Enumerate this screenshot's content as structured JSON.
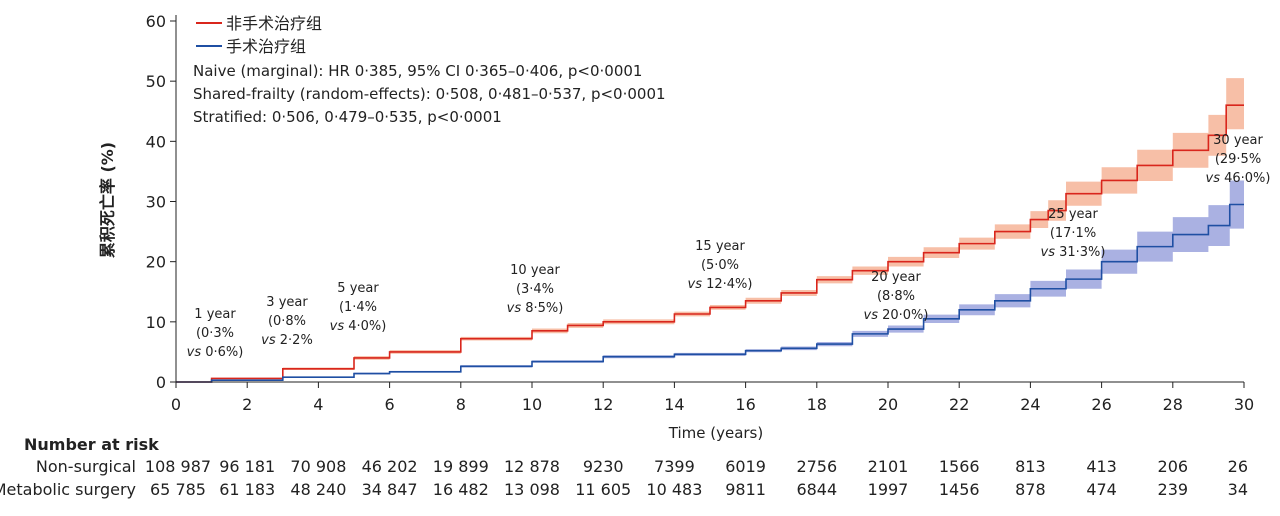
{
  "chart_data": {
    "type": "line",
    "title": "",
    "xlabel": "Time (years)",
    "ylabel": "累积死亡率 (%)",
    "xlim": [
      0,
      30
    ],
    "ylim": [
      0,
      60
    ],
    "x_ticks": [
      "0",
      "2",
      "4",
      "6",
      "8",
      "10",
      "12",
      "14",
      "16",
      "18",
      "20",
      "22",
      "24",
      "26",
      "28",
      "30"
    ],
    "y_ticks": [
      "0",
      "10",
      "20",
      "30",
      "40",
      "50",
      "60"
    ],
    "legend_position": "top-left",
    "series": [
      {
        "name": "非手术治疗组",
        "color": "#d9261c",
        "band_color": "#f4a98a",
        "x": [
          0,
          1,
          3,
          5,
          6,
          8,
          10,
          11,
          12,
          14,
          15,
          16,
          17,
          18,
          19,
          20,
          21,
          22,
          23,
          24,
          24.5,
          25,
          26,
          27,
          28,
          29,
          29.5,
          30
        ],
        "y": [
          0,
          0.6,
          2.2,
          4.0,
          5.0,
          7.2,
          8.5,
          9.4,
          10.0,
          11.3,
          12.4,
          13.5,
          14.8,
          17.0,
          18.5,
          20.0,
          21.5,
          23.0,
          25.0,
          27.0,
          28.5,
          31.3,
          33.5,
          36.0,
          38.5,
          41.0,
          46.0,
          46.0
        ],
        "lower": [
          0,
          0.5,
          2.0,
          3.7,
          4.7,
          6.9,
          8.1,
          9.0,
          9.6,
          10.9,
          12.0,
          13.0,
          14.3,
          16.4,
          17.8,
          19.2,
          20.6,
          22.0,
          23.8,
          25.6,
          26.8,
          29.3,
          31.3,
          33.4,
          35.6,
          37.6,
          42.0,
          42.0
        ],
        "upper": [
          0,
          0.7,
          2.4,
          4.3,
          5.3,
          7.5,
          8.9,
          9.8,
          10.4,
          11.7,
          12.8,
          14.0,
          15.3,
          17.6,
          19.2,
          20.8,
          22.4,
          24.0,
          26.2,
          28.4,
          30.2,
          33.3,
          35.7,
          38.6,
          41.4,
          44.4,
          50.5,
          50.5
        ]
      },
      {
        "name": "手术治疗组",
        "color": "#1f4fa3",
        "band_color": "#8e97d8",
        "x": [
          0,
          1,
          3,
          5,
          6,
          8,
          10,
          12,
          14,
          16,
          17,
          18,
          19,
          20,
          21,
          22,
          23,
          24,
          25,
          26,
          27,
          28,
          29,
          29.6,
          30
        ],
        "y": [
          0,
          0.3,
          0.8,
          1.4,
          1.7,
          2.6,
          3.4,
          4.2,
          4.6,
          5.2,
          5.6,
          6.3,
          8.0,
          8.8,
          10.5,
          12.0,
          13.5,
          15.5,
          17.1,
          20.0,
          22.5,
          24.5,
          26.0,
          29.5,
          29.5
        ],
        "lower": [
          0,
          0.25,
          0.7,
          1.25,
          1.55,
          2.4,
          3.2,
          3.95,
          4.35,
          4.95,
          5.3,
          5.95,
          7.5,
          8.2,
          9.8,
          11.1,
          12.4,
          14.2,
          15.5,
          18.0,
          20.0,
          21.6,
          22.6,
          25.5,
          25.5
        ],
        "upper": [
          0,
          0.35,
          0.9,
          1.55,
          1.85,
          2.8,
          3.6,
          4.45,
          4.85,
          5.45,
          5.9,
          6.65,
          8.5,
          9.4,
          11.2,
          12.9,
          14.6,
          16.8,
          18.7,
          22.0,
          25.0,
          27.4,
          29.4,
          33.5,
          33.5
        ]
      }
    ],
    "legend_stats": [
      "Naive (marginal): HR 0·385, 95% CI 0·365–0·406, p<0·0001",
      "Shared-frailty (random-effects): 0·508, 0·481–0·537, p<0·0001",
      "Stratified: 0·506, 0·479–0·535, p<0·0001"
    ],
    "annotations": [
      {
        "x": 1,
        "y": 0.3,
        "lines": [
          "1 year",
          "(0·3%",
          "vs 0·6%)"
        ]
      },
      {
        "x": 3,
        "y": 0.8,
        "lines": [
          "3 year",
          "(0·8%",
          "vs 2·2%"
        ]
      },
      {
        "x": 5,
        "y": 1.4,
        "lines": [
          "5 year",
          "(1·4%",
          "vs 4·0%)"
        ]
      },
      {
        "x": 10,
        "y": 3.4,
        "lines": [
          "10 year",
          "(3·4%",
          "vs 8·5%)"
        ]
      },
      {
        "x": 15,
        "y": 5.0,
        "lines": [
          "15 year",
          "(5·0%",
          "vs 12·4%)"
        ]
      },
      {
        "x": 20,
        "y": 8.8,
        "lines": [
          "20 year",
          "(8·8%",
          "vs 20·0%)"
        ]
      },
      {
        "x": 25,
        "y": 17.1,
        "lines": [
          "25 year",
          "(17·1%",
          "vs 31·3%)"
        ]
      },
      {
        "x": 30,
        "y": 29.5,
        "lines": [
          "30 year",
          "(29·5%",
          "vs 46·0%)"
        ]
      }
    ],
    "risk_table": {
      "title": "Number at risk",
      "rows": [
        {
          "label": "Non-surgical",
          "values": [
            "108 987",
            "96 181",
            "70 908",
            "46 202",
            "19 899",
            "12 878",
            "9230",
            "7399",
            "6019",
            "2756",
            "2101",
            "1566",
            "813",
            "413",
            "206",
            "26"
          ]
        },
        {
          "label": "Metabolic surgery",
          "values": [
            "65 785",
            "61 183",
            "48 240",
            "34 847",
            "16 482",
            "13 098",
            "11 605",
            "10 483",
            "9811",
            "6844",
            "1997",
            "1456",
            "878",
            "474",
            "239",
            "34"
          ]
        }
      ]
    }
  }
}
